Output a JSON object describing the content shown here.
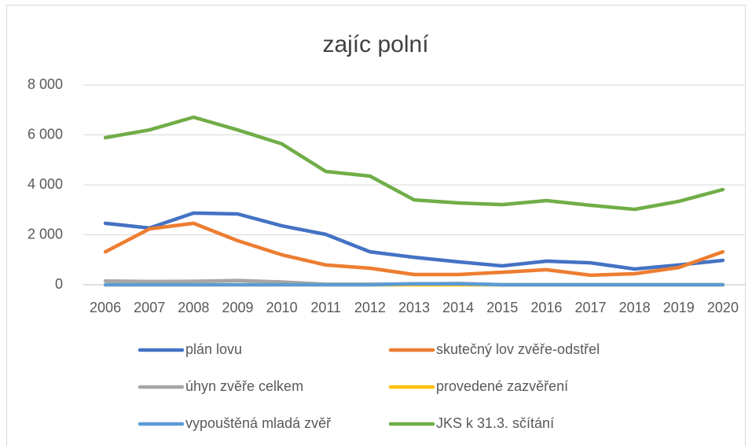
{
  "chart_data": {
    "type": "line",
    "title": "zajíc polní",
    "categories": [
      "2006",
      "2007",
      "2008",
      "2009",
      "2010",
      "2011",
      "2012",
      "2013",
      "2014",
      "2015",
      "2016",
      "2017",
      "2018",
      "2019",
      "2020"
    ],
    "series": [
      {
        "name": "plán lovu",
        "color": "#4472c4",
        "values": [
          2460,
          2270,
          2870,
          2835,
          2360,
          2015,
          1320,
          1100,
          915,
          755,
          945,
          880,
          630,
          790,
          975
        ]
      },
      {
        "name": "skutečný lov zvěře-odstřel",
        "color": "#ed7d31",
        "values": [
          1320,
          2235,
          2460,
          1765,
          1200,
          790,
          660,
          410,
          410,
          500,
          600,
          380,
          440,
          690,
          1320
        ]
      },
      {
        "name": "úhyn zvěře celkem",
        "color": "#a5a5a5",
        "values": [
          150,
          130,
          140,
          170,
          110,
          20,
          20,
          30,
          50,
          0,
          0,
          0,
          0,
          0,
          0
        ]
      },
      {
        "name": "provedené zazvěření",
        "color": "#ffc000",
        "values": [
          0,
          0,
          0,
          0,
          0,
          0,
          0,
          0,
          0,
          0,
          0,
          0,
          0,
          0,
          0
        ]
      },
      {
        "name": "vypouštěná mladá zvěř",
        "color": "#5b9bd5",
        "values": [
          0,
          0,
          0,
          0,
          0,
          0,
          0,
          40,
          40,
          0,
          0,
          0,
          0,
          0,
          0
        ]
      },
      {
        "name": "JKS k 31.3. sčítání",
        "color": "#70ad47",
        "values": [
          5890,
          6200,
          6710,
          6200,
          5640,
          4535,
          4350,
          3400,
          3275,
          3210,
          3370,
          3180,
          3020,
          3340,
          3810
        ]
      }
    ],
    "ylim": [
      0,
      8000
    ],
    "yticks": [
      0,
      {
        "value": 2000,
        "label": "2 000"
      },
      {
        "value": 4000,
        "label": "4 000"
      },
      {
        "value": 6000,
        "label": "6 000"
      },
      {
        "value": 8000,
        "label": "8 000"
      }
    ],
    "grid": true
  }
}
